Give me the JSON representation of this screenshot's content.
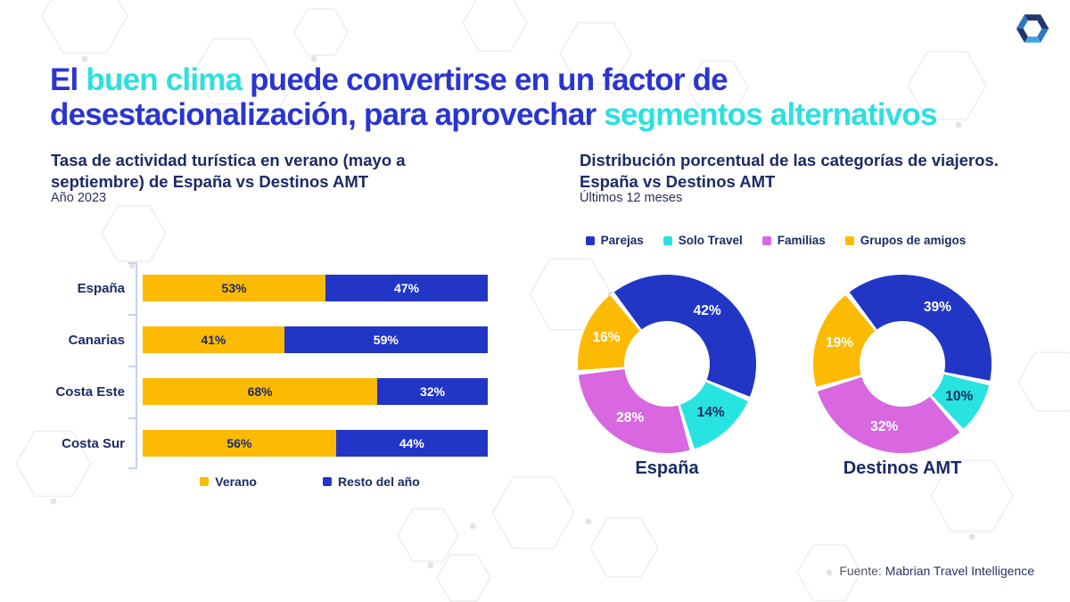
{
  "title": {
    "primary_color": "#2A35D0",
    "accent_color": "#2CE0DE",
    "lines": [
      {
        "segments": [
          {
            "text": "El ",
            "style": "primary"
          },
          {
            "text": "buen clima",
            "style": "accent"
          },
          {
            "text": " puede convertirse en un factor de",
            "style": "primary"
          }
        ]
      },
      {
        "segments": [
          {
            "text": "desestacionalización, para aprovechar ",
            "style": "primary"
          },
          {
            "text": "segmentos alternativos",
            "style": "accent"
          }
        ]
      }
    ]
  },
  "logo": {
    "name": "mabrian-hexagon-logo"
  },
  "footer": {
    "prefix": "Fuente: ",
    "source": "Mabrian Travel Intelligence"
  },
  "chart_data": [
    {
      "type": "bar",
      "orientation": "horizontal",
      "stacked": true,
      "title": "Tasa de actividad turística en verano (mayo a septiembre) de España vs Destinos AMT",
      "subtitle": "Año 2023",
      "categories": [
        "España",
        "Canarias",
        "Costa Este",
        "Costa Sur"
      ],
      "series": [
        {
          "name": "Verano",
          "color": "#FDBA02",
          "value_text_color": "#1C2B66",
          "values": [
            53,
            41,
            68,
            56
          ]
        },
        {
          "name": "Resto del año",
          "color": "#2236C5",
          "value_text_color": "#FFFFFF",
          "values": [
            47,
            59,
            32,
            44
          ]
        }
      ],
      "value_suffix": "%",
      "xlim": [
        0,
        100
      ],
      "legend_position": "bottom",
      "value_labels": "inside"
    },
    {
      "type": "pie",
      "subtype": "donut",
      "title": "Distribución porcentual de las categorías de viajeros. España vs Destinos AMT",
      "subtitle": "Últimos 12 meses",
      "legend_position": "top",
      "legend": [
        {
          "label": "Parejas",
          "color": "#2236C5",
          "value_text_color": "#FFFFFF"
        },
        {
          "label": "Solo Travel",
          "color": "#27E4E0",
          "value_text_color": "#1C2B66"
        },
        {
          "label": "Familias",
          "color": "#D867E0",
          "value_text_color": "#FFFFFF"
        },
        {
          "label": "Grupos de amigos",
          "color": "#FDBA02",
          "value_text_color": "#FFFFFF"
        }
      ],
      "charts": [
        {
          "name": "España",
          "values": [
            42,
            14,
            28,
            16
          ]
        },
        {
          "name": "Destinos AMT",
          "values": [
            39,
            10,
            32,
            19
          ]
        }
      ],
      "start_angle_deg": -38,
      "value_suffix": "%"
    }
  ]
}
